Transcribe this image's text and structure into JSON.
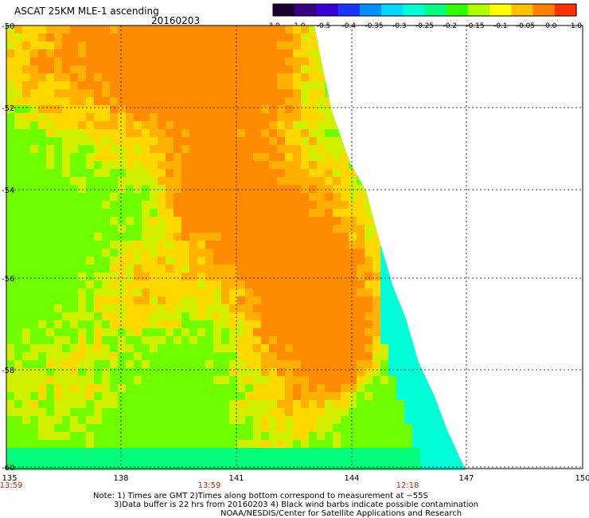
{
  "header": {
    "title": "ASCAT 25KM MLE-1 ascending",
    "date": "20160203"
  },
  "colorbar": {
    "labels": [
      "-3.0",
      "-1.0",
      "-0.5",
      "-0.4",
      "-0.35",
      "-0.3",
      "-0.25",
      "-0.2",
      "-0.15",
      "-0.1",
      "-0.05",
      "0.0",
      "1.0"
    ],
    "colors": [
      "#1a0033",
      "#3a0080",
      "#3a00d8",
      "#1a33ff",
      "#0090ff",
      "#00d8ff",
      "#00ffd8",
      "#00ff80",
      "#30ff00",
      "#b0ff00",
      "#ffff00",
      "#ffc000",
      "#ff8000",
      "#ff3000"
    ]
  },
  "map": {
    "lat_labels": [
      "-50",
      "-52",
      "-54",
      "-56",
      "-58",
      "-60"
    ],
    "lon_labels": [
      "135",
      "138",
      "141",
      "144",
      "147",
      "150"
    ],
    "time_labels": [
      "13:59",
      "13:59",
      "12:18"
    ],
    "time_color": "#d02000",
    "field_colors": {
      "high": "#ff8c00",
      "mid_high": "#ffb000",
      "mid": "#ffd800",
      "mid_low": "#d0f000",
      "low": "#70ff00",
      "lowest": "#00ff7a",
      "edge": "#00ffd8"
    }
  },
  "footer": {
    "note_line1": "Note: 1) Times are GMT 2)Times along bottom correspond to measurement at −55S",
    "note_line2": "3)Data buffer is 22 hrs from 20160203 4) Black wind barbs indicate possible contamination",
    "note_line3": "NOAA/NESDIS/Center for Satellite Applications and Research"
  }
}
